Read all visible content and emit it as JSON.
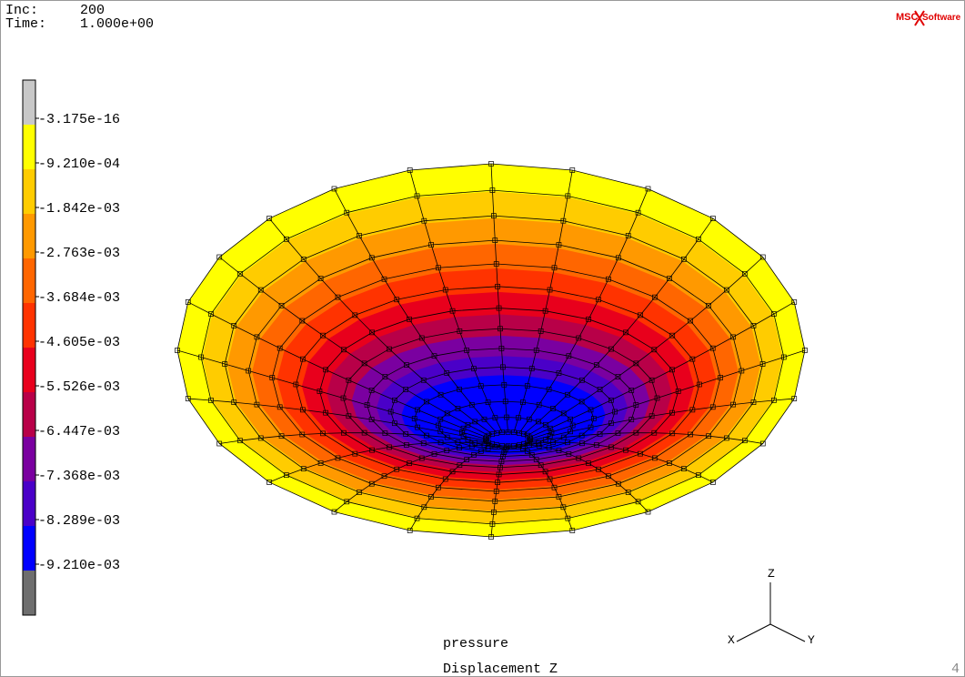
{
  "header": {
    "inc_label": "Inc:",
    "inc_value": "200",
    "time_label": "Time:",
    "time_value": "1.000e+00"
  },
  "logo": {
    "brand": "MSC",
    "name": "Software"
  },
  "legend": {
    "labels": [
      "-3.175e-16",
      "-9.210e-04",
      "-1.842e-03",
      "-2.763e-03",
      "-3.684e-03",
      "-4.605e-03",
      "-5.526e-03",
      "-6.447e-03",
      "-7.368e-03",
      "-8.289e-03",
      "-9.210e-03"
    ],
    "colors": [
      "#ffff00",
      "#ffcc00",
      "#ff9900",
      "#ff6600",
      "#ff3300",
      "#e8001c",
      "#b80048",
      "#7a00a0",
      "#4a00c8",
      "#0000ff"
    ],
    "top_color": "#c8c8c8",
    "bottom_color": "#6e6e6e"
  },
  "footer": {
    "line1": "pressure",
    "line2": "Displacement Z",
    "page": "4"
  },
  "axes": {
    "z": "Z",
    "x": "X",
    "y": "Y"
  }
}
